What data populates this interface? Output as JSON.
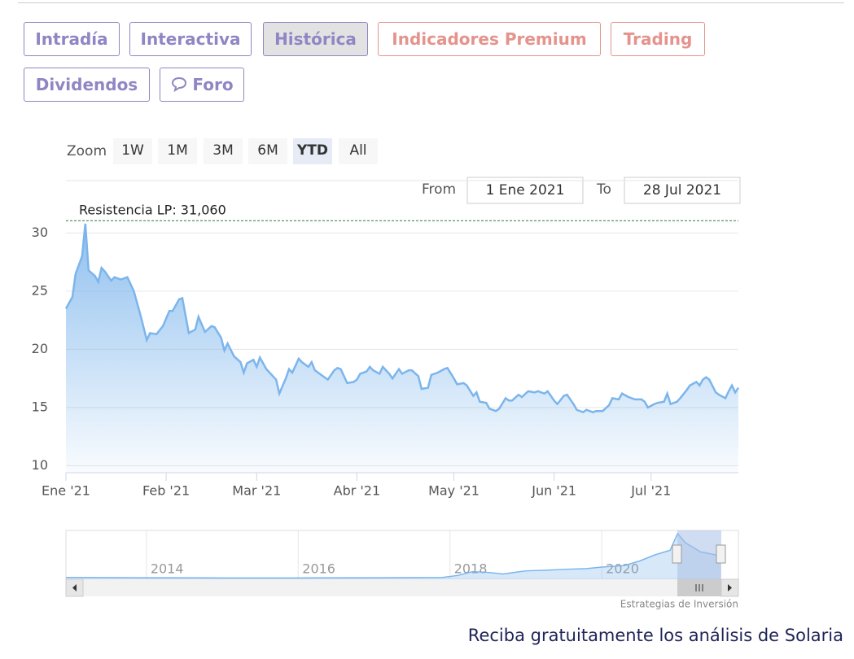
{
  "tabs": [
    "Intradía",
    "Interactiva",
    "Histórica",
    "Indicadores Premium",
    "Trading",
    "Dividendos",
    "Foro"
  ],
  "zoom": {
    "label": "Zoom",
    "buttons": [
      "1W",
      "1M",
      "3M",
      "6M",
      "YTD",
      "All"
    ]
  },
  "range": {
    "from_label": "From",
    "from": "1 Ene 2021",
    "to_label": "To",
    "to": "28 Jul 2021"
  },
  "chart_data": {
    "type": "area",
    "color": "#7cb5ec",
    "annotation": {
      "text": "Resistencia LP: 31,060",
      "value": 31.06,
      "color": "#2e7d32"
    },
    "x": [
      0,
      2,
      3,
      5,
      6,
      7,
      9,
      10,
      11,
      12,
      14,
      15,
      17,
      19,
      21,
      23,
      25,
      26,
      28,
      30,
      32,
      33,
      35,
      36,
      38,
      40,
      41,
      43,
      45,
      46,
      48,
      49,
      50,
      52,
      54,
      55,
      56,
      58,
      59,
      60,
      62,
      64,
      65,
      66,
      68,
      69,
      70,
      72,
      73,
      75,
      76,
      77,
      79,
      81,
      83,
      84,
      85,
      87,
      89,
      90,
      91,
      93,
      94,
      95,
      97,
      98,
      100,
      101,
      103,
      104,
      106,
      107,
      109,
      110,
      112,
      113,
      115,
      117,
      118,
      120,
      121,
      123,
      124,
      126,
      127,
      128,
      130,
      131,
      133,
      134,
      136,
      137,
      138,
      140,
      141,
      143,
      145,
      146,
      148,
      149,
      151,
      152,
      154,
      155,
      157,
      158,
      160,
      161,
      163,
      164,
      166,
      168,
      169,
      171,
      172,
      174,
      176,
      178,
      179,
      180,
      182,
      183,
      185,
      186,
      187,
      189,
      190,
      192,
      193,
      195,
      196,
      197,
      198,
      199,
      201,
      202,
      204,
      205,
      206,
      207,
      208
    ],
    "values": [
      23.5,
      24.5,
      26.5,
      28,
      30.8,
      26.8,
      26.3,
      25.8,
      27,
      26.7,
      25.9,
      26.2,
      26,
      26.2,
      25,
      23,
      20.8,
      21.4,
      21.3,
      22,
      23.3,
      23.3,
      24.3,
      24.4,
      21.4,
      21.7,
      22.8,
      21.5,
      22,
      21.9,
      21,
      19.9,
      20.5,
      19.4,
      18.9,
      18,
      18.8,
      19.1,
      18.5,
      19.3,
      18.3,
      17.7,
      17.4,
      16.2,
      17.5,
      18.3,
      18,
      19.2,
      18.9,
      18.5,
      18.9,
      18.2,
      17.8,
      17.4,
      18.2,
      18.4,
      18.3,
      17.1,
      17.2,
      17.4,
      17.9,
      18.1,
      18.5,
      18.2,
      17.9,
      18.5,
      17.9,
      17.5,
      18.3,
      17.9,
      18.2,
      18.2,
      17.7,
      16.6,
      16.7,
      17.8,
      18,
      18.3,
      18.4,
      17.5,
      17,
      17.1,
      16.9,
      16,
      16.3,
      15.5,
      15.4,
      14.9,
      14.7,
      14.9,
      15.8,
      15.6,
      15.6,
      16.1,
      15.9,
      16.4,
      16.3,
      16.4,
      16.2,
      16.4,
      15.6,
      15.3,
      16,
      16.1,
      15.3,
      14.8,
      14.6,
      14.8,
      14.6,
      14.7,
      14.7,
      15.2,
      15.8,
      15.7,
      16.2,
      15.9,
      15.7,
      15.7,
      15.5,
      15,
      15.3,
      15.4,
      15.5,
      16.2,
      15.3,
      15.5,
      15.8,
      16.5,
      16.9,
      17.2,
      16.9,
      17.4,
      17.6,
      17.4,
      16.3,
      16.1,
      15.8,
      16.4,
      16.9,
      16.3,
      16.7
    ],
    "xlim": [
      0,
      208
    ],
    "xticks": [
      {
        "value": 0,
        "label": "Ene '21"
      },
      {
        "value": 31,
        "label": "Feb '21"
      },
      {
        "value": 59,
        "label": "Mar '21"
      },
      {
        "value": 90,
        "label": "Abr '21"
      },
      {
        "value": 120,
        "label": "May '21"
      },
      {
        "value": 151,
        "label": "Jun '21"
      },
      {
        "value": 181,
        "label": "Jul '21"
      }
    ],
    "ylim": [
      9.4,
      34.5
    ],
    "yticks": [
      10,
      15,
      20,
      25,
      30
    ],
    "grid": true,
    "navigator": {
      "x": [
        2012.94,
        2014,
        2015,
        2016,
        2017,
        2017.9,
        2018.1,
        2018.3,
        2018.5,
        2018.7,
        2019,
        2019.3,
        2019.5,
        2019.8,
        2020,
        2020.3,
        2020.5,
        2020.7,
        2020.9,
        2021,
        2021.1,
        2021.3,
        2021.5,
        2021.57
      ],
      "values": [
        1.2,
        1,
        0.9,
        0.9,
        1,
        1.2,
        2.5,
        5,
        4.5,
        3.5,
        5.5,
        6,
        6.5,
        7,
        8,
        9,
        12,
        16,
        19,
        30,
        24,
        18,
        16,
        16.7
      ],
      "xlim": [
        2012.94,
        2021.8
      ],
      "ylim": [
        0,
        32
      ],
      "xticks": [
        2014,
        2016,
        2018,
        2020
      ]
    },
    "credits": "Estrategias de Inversión"
  },
  "footer": "Reciba gratuitamente los análisis de Solaria"
}
